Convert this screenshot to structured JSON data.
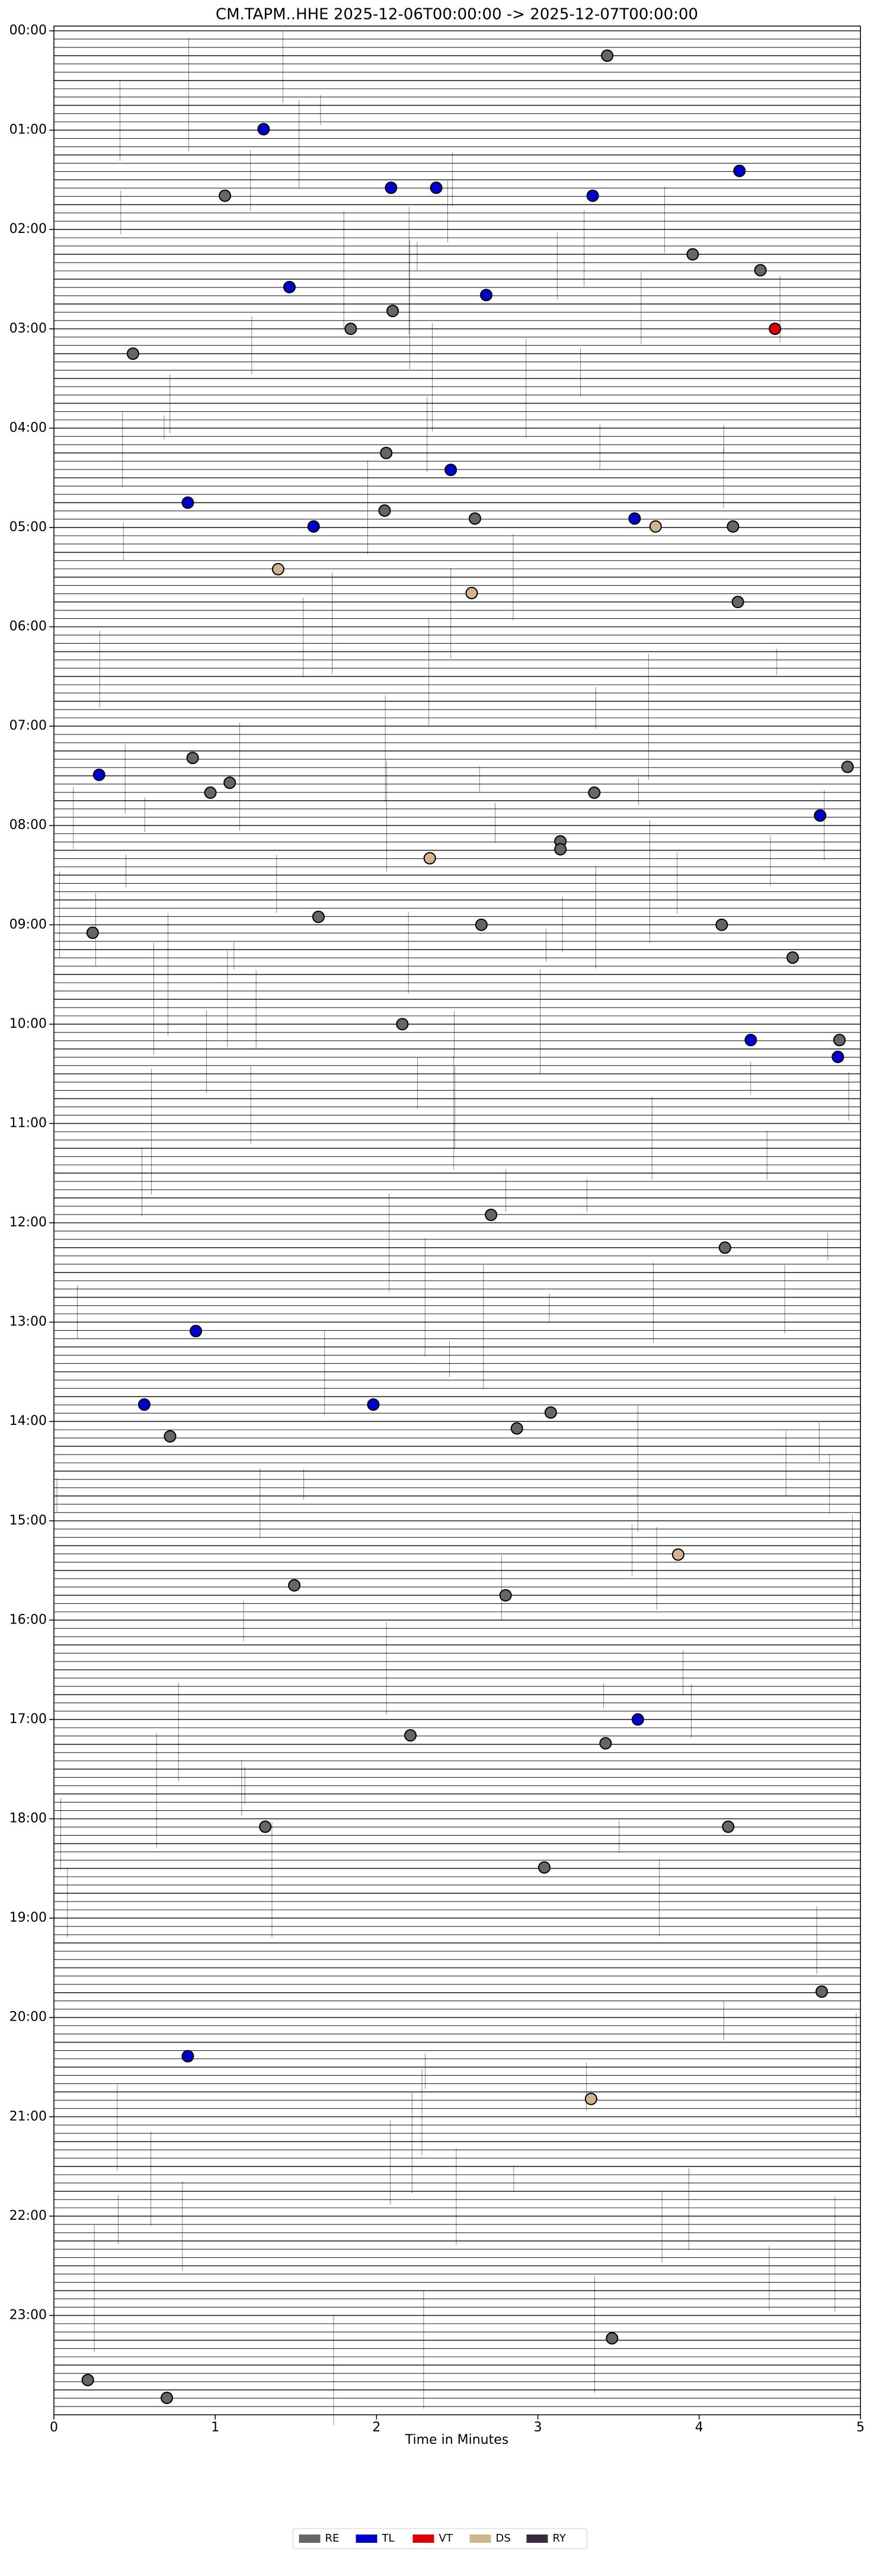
{
  "chart_data": {
    "type": "scatter",
    "title": "CM.TAPM..HHE  2025-12-06T00:00:00 -> 2025-12-07T00:00:00",
    "x_label": "Time in Minutes",
    "xlim": [
      0,
      5
    ],
    "xticks": [
      0,
      1,
      2,
      3,
      4,
      5
    ],
    "ylim": [
      0,
      24
    ],
    "y_inverted": true,
    "yticks": [
      {
        "value": 0,
        "label": "00:00"
      },
      {
        "value": 1,
        "label": "01:00"
      },
      {
        "value": 2,
        "label": "02:00"
      },
      {
        "value": 3,
        "label": "03:00"
      },
      {
        "value": 4,
        "label": "04:00"
      },
      {
        "value": 5,
        "label": "05:00"
      },
      {
        "value": 6,
        "label": "06:00"
      },
      {
        "value": 7,
        "label": "07:00"
      },
      {
        "value": 8,
        "label": "08:00"
      },
      {
        "value": 9,
        "label": "09:00"
      },
      {
        "value": 10,
        "label": "10:00"
      },
      {
        "value": 11,
        "label": "11:00"
      },
      {
        "value": 12,
        "label": "12:00"
      },
      {
        "value": 13,
        "label": "13:00"
      },
      {
        "value": 14,
        "label": "14:00"
      },
      {
        "value": 15,
        "label": "15:00"
      },
      {
        "value": 16,
        "label": "16:00"
      },
      {
        "value": 17,
        "label": "17:00"
      },
      {
        "value": 18,
        "label": "18:00"
      },
      {
        "value": 19,
        "label": "19:00"
      },
      {
        "value": 20,
        "label": "20:00"
      },
      {
        "value": 21,
        "label": "21:00"
      },
      {
        "value": 22,
        "label": "22:00"
      },
      {
        "value": 23,
        "label": "23:00"
      }
    ],
    "legend_loc": "lower center",
    "series": [
      {
        "name": "RE",
        "color": "#666666",
        "x": [
          3.43,
          1.06,
          3.96,
          4.38,
          2.1,
          1.84,
          0.49,
          2.06,
          2.05,
          2.61,
          4.21,
          4.24,
          0.86,
          4.92,
          1.09,
          0.97,
          3.35,
          3.14,
          3.14,
          0.24,
          1.64,
          2.65,
          4.14,
          4.58,
          2.16,
          4.87,
          2.71,
          4.16,
          0.72,
          3.08,
          2.87,
          1.49,
          2.8,
          2.21,
          3.42,
          1.31,
          4.18,
          3.04,
          4.76,
          3.46,
          0.21,
          0.7
        ],
        "values": [
          0.25,
          1.66,
          2.25,
          2.41,
          2.82,
          3.0,
          3.25,
          4.25,
          4.83,
          4.91,
          4.99,
          5.75,
          7.32,
          7.41,
          7.57,
          7.67,
          7.67,
          8.16,
          8.24,
          9.08,
          8.92,
          9.0,
          9.0,
          9.33,
          10.0,
          10.16,
          11.92,
          12.25,
          14.15,
          13.91,
          14.07,
          15.65,
          15.75,
          17.16,
          17.24,
          18.08,
          18.08,
          18.49,
          19.74,
          23.23,
          23.65,
          23.83
        ]
      },
      {
        "name": "TL",
        "color": "#0000cc",
        "x": [
          1.3,
          2.09,
          2.37,
          4.25,
          3.34,
          1.46,
          2.68,
          2.46,
          0.83,
          1.61,
          3.6,
          0.28,
          4.75,
          4.32,
          4.86,
          0.88,
          0.56,
          1.98,
          3.62,
          0.83
        ],
        "values": [
          0.99,
          1.58,
          1.58,
          1.41,
          1.66,
          2.58,
          2.66,
          4.42,
          4.75,
          4.99,
          4.91,
          7.49,
          7.9,
          10.16,
          10.33,
          13.09,
          13.83,
          13.83,
          17.0,
          20.39
        ]
      },
      {
        "name": "VT",
        "color": "#dd0000",
        "x": [
          4.47
        ],
        "values": [
          3.0
        ]
      },
      {
        "name": "DS",
        "color": "#d2b48c",
        "x": [
          1.39,
          3.73,
          2.59,
          2.33,
          3.87,
          3.33
        ],
        "values": [
          5.42,
          4.99,
          5.66,
          8.33,
          15.34,
          20.82
        ]
      },
      {
        "name": "RY",
        "color": "#3b2a3f",
        "x": [],
        "values": []
      }
    ]
  }
}
